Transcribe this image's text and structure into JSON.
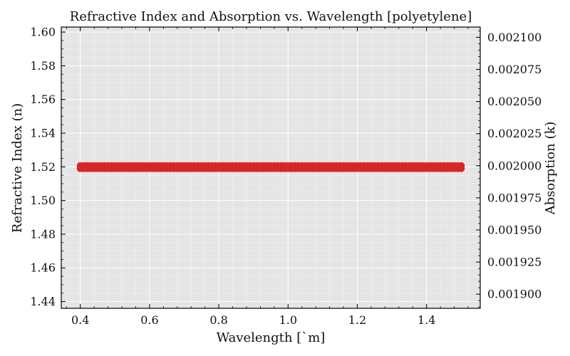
{
  "chart_data": {
    "type": "scatter",
    "title": "Refractive Index and Absorption vs. Wavelength [polyetylene]",
    "xlabel": "Wavelength [`m]",
    "ylabel": "Refractive Index (n)",
    "y2label": "Absorption (k)",
    "xlim": [
      0.345,
      1.555
    ],
    "ylim": [
      1.436,
      1.603
    ],
    "y2lim": [
      0.001889,
      0.002108
    ],
    "x_ticks": [
      "0.4",
      "0.6",
      "0.8",
      "1.0",
      "1.2",
      "1.4"
    ],
    "y_ticks": [
      "1.44",
      "1.46",
      "1.48",
      "1.50",
      "1.52",
      "1.54",
      "1.56",
      "1.58",
      "1.60"
    ],
    "y2_ticks": [
      "0.001900",
      "0.001925",
      "0.001950",
      "0.001975",
      "0.002000",
      "0.002025",
      "0.002050",
      "0.002075",
      "0.002100"
    ],
    "grid": true,
    "series": [
      {
        "axis": "left",
        "color": "#d62728",
        "x_start": 0.4,
        "x_end": 1.5,
        "x_step": 0.01,
        "y": 1.519
      },
      {
        "axis": "right",
        "color": "#d62728",
        "x_start": 0.4,
        "x_end": 1.5,
        "x_step": 0.01,
        "y": 0.002
      }
    ]
  }
}
